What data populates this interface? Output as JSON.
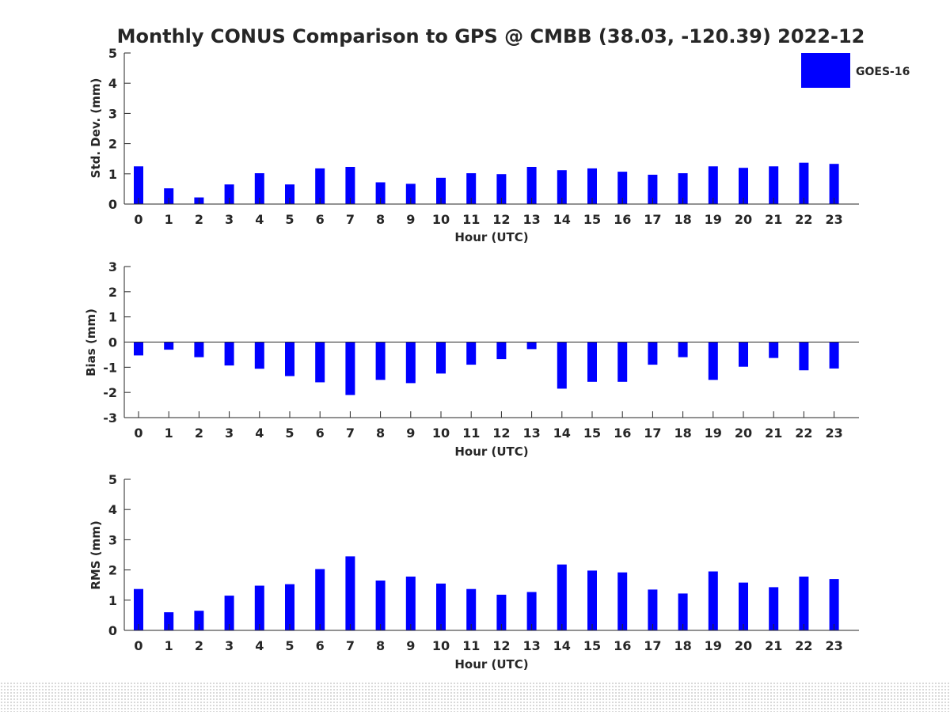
{
  "title": "Monthly CONUS Comparison to GPS @ CMBB (38.03, -120.39) 2022-12",
  "legend": {
    "label": "GOES-16",
    "color": "#0000ff",
    "placement": "top-right"
  },
  "chart_data": [
    {
      "type": "bar",
      "title": "Monthly CONUS Comparison to GPS @ CMBB (38.03, -120.39) 2022-12",
      "xlabel": "Hour (UTC)",
      "ylabel": "Std. Dev. (mm)",
      "categories": [
        "0",
        "1",
        "2",
        "3",
        "4",
        "5",
        "6",
        "7",
        "8",
        "9",
        "10",
        "11",
        "12",
        "13",
        "14",
        "15",
        "16",
        "17",
        "18",
        "19",
        "20",
        "21",
        "22",
        "23"
      ],
      "yticks": [
        "0",
        "1",
        "2",
        "3",
        "4",
        "5"
      ],
      "ylim": [
        0,
        5
      ],
      "series": [
        {
          "name": "GOES-16",
          "values": [
            1.25,
            0.52,
            0.22,
            0.65,
            1.02,
            0.65,
            1.18,
            1.23,
            0.72,
            0.67,
            0.87,
            1.02,
            0.99,
            1.23,
            1.12,
            1.18,
            1.07,
            0.97,
            1.02,
            1.25,
            1.2,
            1.25,
            1.37,
            1.33
          ]
        }
      ]
    },
    {
      "type": "bar",
      "xlabel": "Hour (UTC)",
      "ylabel": "Bias (mm)",
      "categories": [
        "0",
        "1",
        "2",
        "3",
        "4",
        "5",
        "6",
        "7",
        "8",
        "9",
        "10",
        "11",
        "12",
        "13",
        "14",
        "15",
        "16",
        "17",
        "18",
        "19",
        "20",
        "21",
        "22",
        "23"
      ],
      "yticks": [
        "-3",
        "-2",
        "-1",
        "0",
        "1",
        "2",
        "3"
      ],
      "ylim": [
        -3,
        3
      ],
      "zero_line": true,
      "series": [
        {
          "name": "GOES-16",
          "values": [
            -0.53,
            -0.3,
            -0.6,
            -0.93,
            -1.06,
            -1.35,
            -1.6,
            -2.1,
            -1.5,
            -1.63,
            -1.25,
            -0.9,
            -0.68,
            -0.28,
            -1.85,
            -1.58,
            -1.58,
            -0.9,
            -0.6,
            -1.5,
            -0.98,
            -0.63,
            -1.12,
            -1.05
          ]
        }
      ]
    },
    {
      "type": "bar",
      "xlabel": "Hour (UTC)",
      "ylabel": "RMS (mm)",
      "categories": [
        "0",
        "1",
        "2",
        "3",
        "4",
        "5",
        "6",
        "7",
        "8",
        "9",
        "10",
        "11",
        "12",
        "13",
        "14",
        "15",
        "16",
        "17",
        "18",
        "19",
        "20",
        "21",
        "22",
        "23"
      ],
      "yticks": [
        "0",
        "1",
        "2",
        "3",
        "4",
        "5"
      ],
      "ylim": [
        0,
        5
      ],
      "series": [
        {
          "name": "GOES-16",
          "values": [
            1.37,
            0.6,
            0.65,
            1.15,
            1.48,
            1.53,
            2.03,
            2.45,
            1.65,
            1.78,
            1.55,
            1.37,
            1.18,
            1.27,
            2.18,
            1.98,
            1.92,
            1.35,
            1.22,
            1.95,
            1.58,
            1.43,
            1.78,
            1.7
          ]
        }
      ]
    }
  ]
}
